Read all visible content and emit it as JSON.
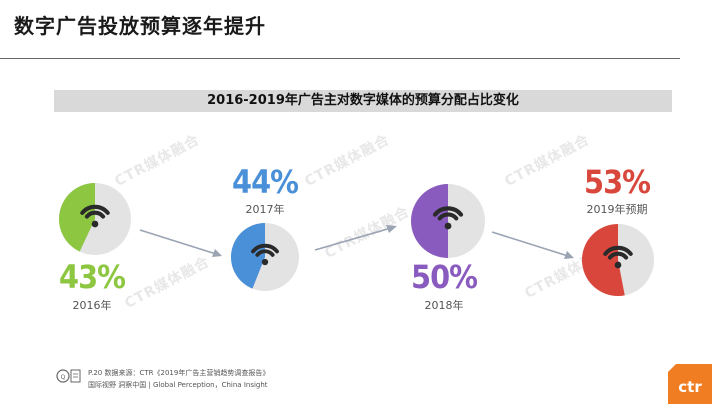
{
  "header": {
    "title": "数字广告投放预算逐年提升"
  },
  "subtitle": "2016-2019年广告主对数字媒体的预算分配占比变化",
  "watermark": "CTR媒体融合",
  "chart_data": {
    "type": "pie",
    "items": [
      {
        "year": "2016年",
        "pct_label": "43%",
        "value": 43,
        "color": "#8dc641"
      },
      {
        "year": "2017年",
        "pct_label": "44%",
        "value": 44,
        "color": "#4a90d9"
      },
      {
        "year": "2018年",
        "pct_label": "50%",
        "value": 50,
        "color": "#8a5bbf"
      },
      {
        "year": "2019年预期",
        "pct_label": "53%",
        "value": 53,
        "color": "#d9463b"
      }
    ],
    "remainder_color": "#e3e3e3"
  },
  "footer": {
    "source": "P.20 数据来源：CTR《2019年广告主营销趋势调查报告》",
    "tagline": "国际视野 洞察中国 | Global Perception，China Insight"
  },
  "logo": {
    "text": "ctr",
    "color": "#f07d21"
  }
}
